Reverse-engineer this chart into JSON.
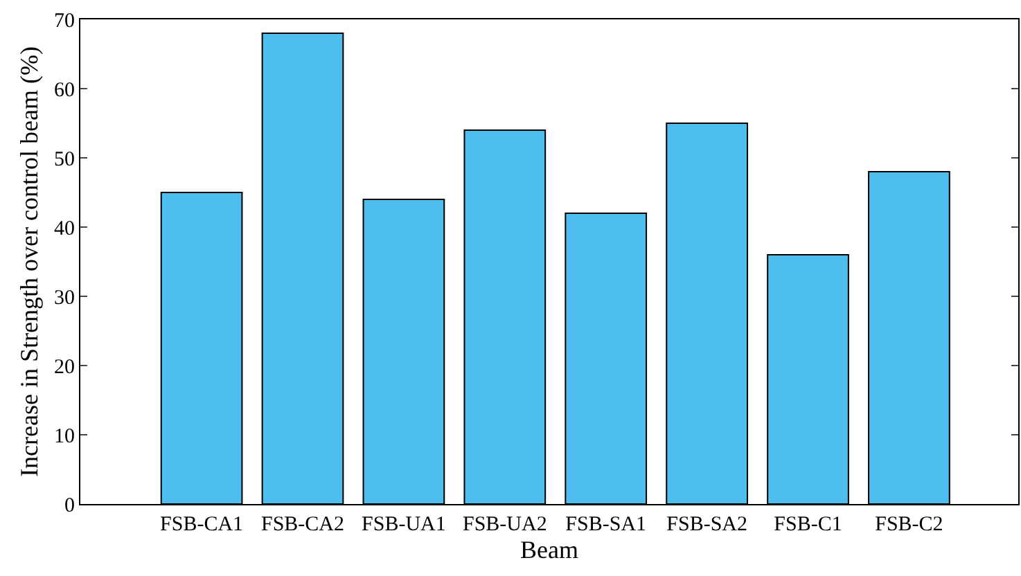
{
  "chart_data": {
    "type": "bar",
    "xlabel": "Beam",
    "ylabel": "Increase in Strength over control beam (%)",
    "categories": [
      "FSB-CA1",
      "FSB-CA2",
      "FSB-UA1",
      "FSB-UA2",
      "FSB-SA1",
      "FSB-SA2",
      "FSB-C1",
      "FSB-C2"
    ],
    "values": [
      45,
      68,
      44,
      54,
      42,
      55,
      36,
      48
    ],
    "color": "#4dbeee",
    "ylim": [
      0,
      70
    ],
    "yticks": [
      0,
      10,
      20,
      30,
      40,
      50,
      60,
      70
    ]
  }
}
